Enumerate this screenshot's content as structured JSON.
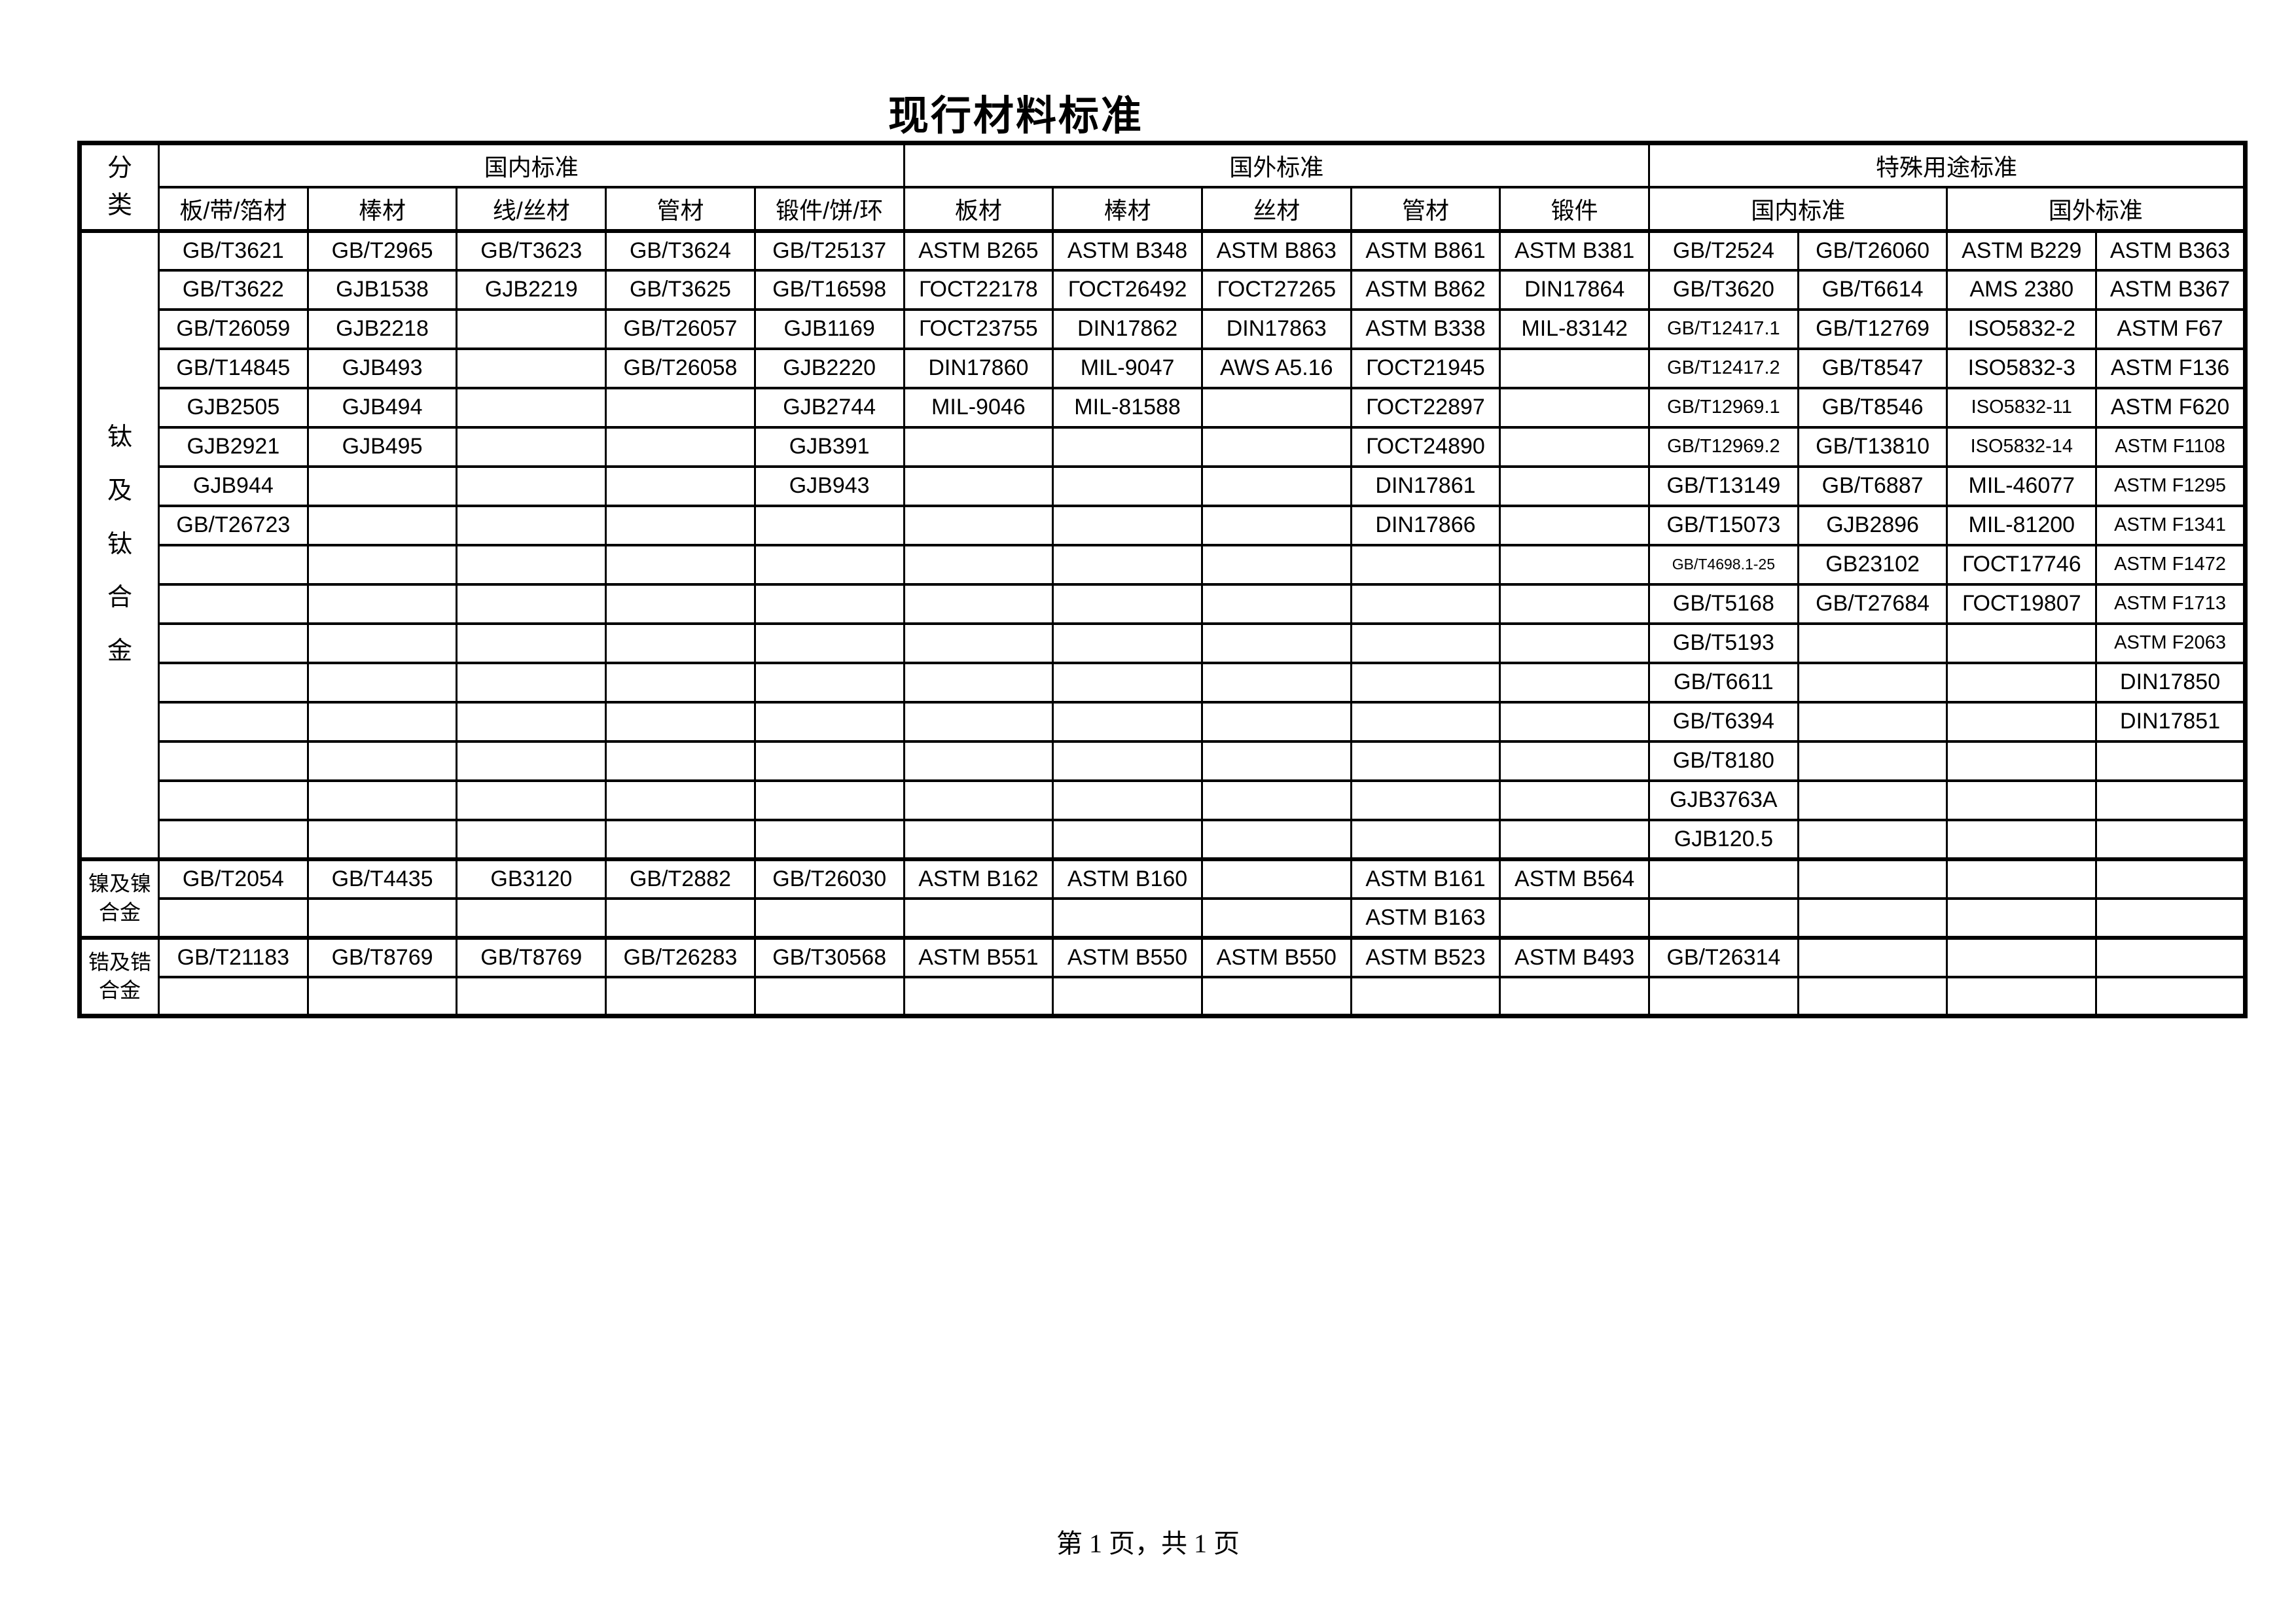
{
  "title": "现行材料标准",
  "footer": "第 1 页，共 1 页",
  "header": {
    "category_label": "分类",
    "groups": [
      {
        "label": "国内标准"
      },
      {
        "label": "国外标准"
      },
      {
        "label": "特殊用途标准"
      }
    ],
    "domestic_columns": [
      "板/带/箔材",
      "棒材",
      "线/丝材",
      "管材",
      "锻件/饼/环"
    ],
    "foreign_columns": [
      "板材",
      "棒材",
      "丝材",
      "管材",
      "锻件"
    ],
    "special_columns": [
      {
        "label": "国内标准"
      },
      {
        "label": "国外标准"
      }
    ]
  },
  "sections": [
    {
      "category": "钛及钛合金",
      "rows": [
        [
          "GB/T3621",
          "GB/T2965",
          "GB/T3623",
          "GB/T3624",
          "GB/T25137",
          "ASTM B265",
          "ASTM B348",
          "ASTM B863",
          "ASTM B861",
          "ASTM B381",
          "GB/T2524",
          "GB/T26060",
          "ASTM B229",
          "ASTM B363"
        ],
        [
          "GB/T3622",
          "GJB1538",
          "GJB2219",
          "GB/T3625",
          "GB/T16598",
          "ГОСТ22178",
          "ГОСТ26492",
          "ГОСТ27265",
          "ASTM B862",
          "DIN17864",
          "GB/T3620",
          "GB/T6614",
          "AMS 2380",
          "ASTM B367"
        ],
        [
          "GB/T26059",
          "GJB2218",
          "",
          "GB/T26057",
          "GJB1169",
          "ГОСТ23755",
          "DIN17862",
          "DIN17863",
          "ASTM B338",
          "MIL-83142",
          "GB/T12417.1",
          "GB/T12769",
          "ISO5832-2",
          "ASTM F67"
        ],
        [
          "GB/T14845",
          "GJB493",
          "",
          "GB/T26058",
          "GJB2220",
          "DIN17860",
          "MIL-9047",
          "AWS A5.16",
          "ГОСТ21945",
          "",
          "GB/T12417.2",
          "GB/T8547",
          "ISO5832-3",
          "ASTM F136"
        ],
        [
          "GJB2505",
          "GJB494",
          "",
          "",
          "GJB2744",
          "MIL-9046",
          "MIL-81588",
          "",
          "ГОСТ22897",
          "",
          "GB/T12969.1",
          "GB/T8546",
          "ISO5832-11",
          "ASTM F620"
        ],
        [
          "GJB2921",
          "GJB495",
          "",
          "",
          "GJB391",
          "",
          "",
          "",
          "ГОСТ24890",
          "",
          "GB/T12969.2",
          "GB/T13810",
          "ISO5832-14",
          "ASTM F1108"
        ],
        [
          "GJB944",
          "",
          "",
          "",
          "GJB943",
          "",
          "",
          "",
          "DIN17861",
          "",
          "GB/T13149",
          "GB/T6887",
          "MIL-46077",
          "ASTM F1295"
        ],
        [
          "GB/T26723",
          "",
          "",
          "",
          "",
          "",
          "",
          "",
          "DIN17866",
          "",
          "GB/T15073",
          "GJB2896",
          "MIL-81200",
          "ASTM F1341"
        ],
        [
          "",
          "",
          "",
          "",
          "",
          "",
          "",
          "",
          "",
          "",
          "GB/T4698.1-25",
          "GB23102",
          "ГОСТ17746",
          "ASTM F1472"
        ],
        [
          "",
          "",
          "",
          "",
          "",
          "",
          "",
          "",
          "",
          "",
          "GB/T5168",
          "GB/T27684",
          "ГОСТ19807",
          "ASTM F1713"
        ],
        [
          "",
          "",
          "",
          "",
          "",
          "",
          "",
          "",
          "",
          "",
          "GB/T5193",
          "",
          "",
          "ASTM F2063"
        ],
        [
          "",
          "",
          "",
          "",
          "",
          "",
          "",
          "",
          "",
          "",
          "GB/T6611",
          "",
          "",
          "DIN17850"
        ],
        [
          "",
          "",
          "",
          "",
          "",
          "",
          "",
          "",
          "",
          "",
          "GB/T6394",
          "",
          "",
          "DIN17851"
        ],
        [
          "",
          "",
          "",
          "",
          "",
          "",
          "",
          "",
          "",
          "",
          "GB/T8180",
          "",
          "",
          ""
        ],
        [
          "",
          "",
          "",
          "",
          "",
          "",
          "",
          "",
          "",
          "",
          "GJB3763A",
          "",
          "",
          ""
        ],
        [
          "",
          "",
          "",
          "",
          "",
          "",
          "",
          "",
          "",
          "",
          "GJB120.5",
          "",
          "",
          ""
        ]
      ]
    },
    {
      "category": "镍及镍合金",
      "rows": [
        [
          "GB/T2054",
          "GB/T4435",
          "GB3120",
          "GB/T2882",
          "GB/T26030",
          "ASTM B162",
          "ASTM B160",
          "",
          "ASTM B161",
          "ASTM B564",
          "",
          "",
          "",
          ""
        ],
        [
          "",
          "",
          "",
          "",
          "",
          "",
          "",
          "",
          "ASTM B163",
          "",
          "",
          "",
          "",
          ""
        ]
      ]
    },
    {
      "category": "锆及锆合金",
      "rows": [
        [
          "GB/T21183",
          "GB/T8769",
          "GB/T8769",
          "GB/T26283",
          "GB/T30568",
          "ASTM B551",
          "ASTM B550",
          "ASTM B550",
          "ASTM B523",
          "ASTM B493",
          "GB/T26314",
          "",
          "",
          ""
        ],
        [
          "",
          "",
          "",
          "",
          "",
          "",
          "",
          "",
          "",
          "",
          "",
          "",
          "",
          ""
        ]
      ]
    }
  ]
}
